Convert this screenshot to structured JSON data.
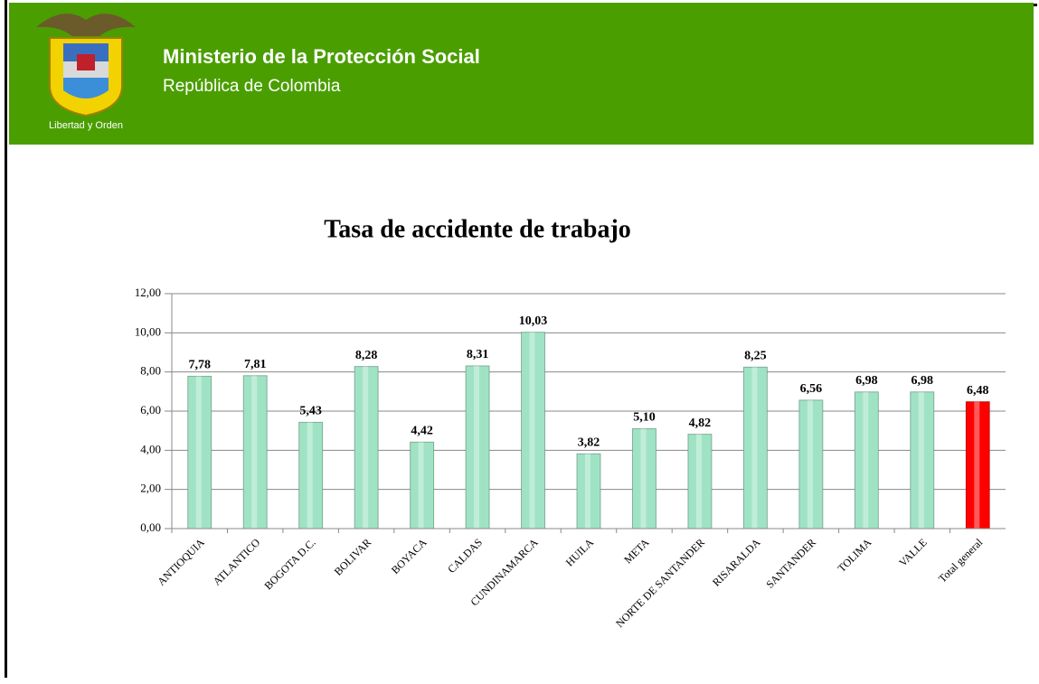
{
  "header": {
    "title": "Ministerio de la Protección Social",
    "subtitle": "República de Colombia",
    "motto": "Libertad y Orden"
  },
  "chart_data": {
    "type": "bar",
    "title": "Tasa de accidente de trabajo",
    "categories": [
      "ANTIOQUIA",
      "ATLANTICO",
      "BOGOTA D.C.",
      "BOLIVAR",
      "BOYACA",
      "CALDAS",
      "CUNDINAMARCA",
      "HUILA",
      "META",
      "NORTE DE SANTANDER",
      "RISARALDA",
      "SANTANDER",
      "TOLIMA",
      "VALLE",
      "Total general"
    ],
    "values": [
      7.78,
      7.81,
      5.43,
      8.28,
      4.42,
      8.31,
      10.03,
      3.82,
      5.1,
      4.82,
      8.25,
      6.56,
      6.98,
      6.98,
      6.48
    ],
    "value_labels": [
      "7,78",
      "7,81",
      "5,43",
      "8,28",
      "4,42",
      "8,31",
      "10,03",
      "3,82",
      "5,10",
      "4,82",
      "8,25",
      "6,56",
      "6,98",
      "6,98",
      "6,48"
    ],
    "colors": [
      "#9fe3c4",
      "#9fe3c4",
      "#9fe3c4",
      "#9fe3c4",
      "#9fe3c4",
      "#9fe3c4",
      "#9fe3c4",
      "#9fe3c4",
      "#9fe3c4",
      "#9fe3c4",
      "#9fe3c4",
      "#9fe3c4",
      "#9fe3c4",
      "#9fe3c4",
      "#ff0000"
    ],
    "ylim": [
      0,
      12
    ],
    "yticks": [
      {
        "value": 0,
        "label": "0,00"
      },
      {
        "value": 2,
        "label": "2,00"
      },
      {
        "value": 4,
        "label": "4,00"
      },
      {
        "value": 6,
        "label": "6,00"
      },
      {
        "value": 8,
        "label": "8,00"
      },
      {
        "value": 10,
        "label": "10,00"
      },
      {
        "value": 12,
        "label": "12,00"
      }
    ],
    "grid": true
  }
}
